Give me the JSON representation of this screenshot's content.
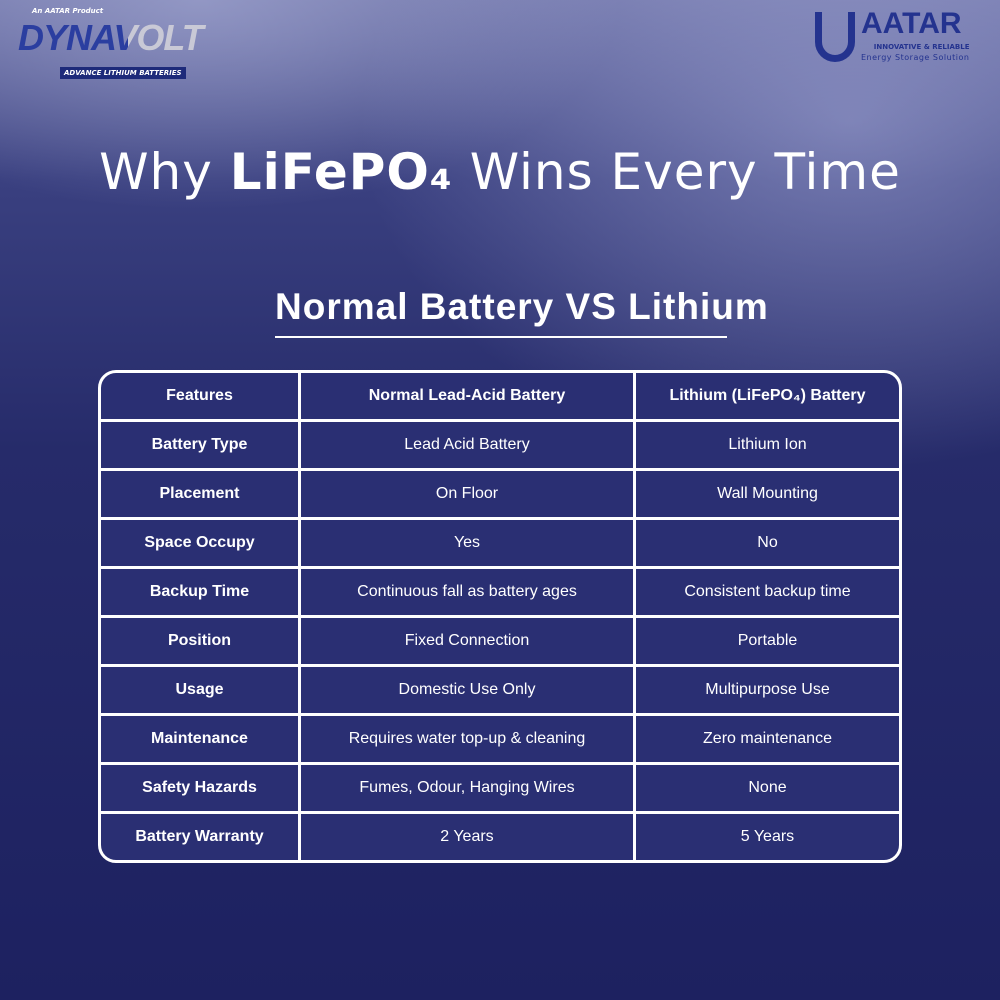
{
  "brand_left": {
    "pre": "An AATAR Product",
    "name": "DYNAVOLT",
    "tagline": "ADVANCE LITHIUM BATTERIES"
  },
  "brand_right": {
    "name": "AATAR",
    "tagline1": "INNOVATIVE & RELIABLE",
    "tagline2": "Energy Storage Solution"
  },
  "title": {
    "pre": "Why ",
    "bold": "LiFePO₄",
    "post": " Wins Every Time"
  },
  "subtitle": "Normal Battery VS Lithium",
  "table": {
    "headers": [
      "Features",
      "Normal Lead-Acid Battery",
      "Lithium (LiFePO₄) Battery"
    ],
    "rows": [
      [
        "Battery Type",
        "Lead Acid Battery",
        "Lithium Ion"
      ],
      [
        "Placement",
        "On Floor",
        "Wall Mounting"
      ],
      [
        "Space Occupy",
        "Yes",
        "No"
      ],
      [
        "Backup Time",
        "Continuous fall as battery ages",
        "Consistent backup time"
      ],
      [
        "Position",
        "Fixed Connection",
        "Portable"
      ],
      [
        "Usage",
        "Domestic Use Only",
        "Multipurpose Use"
      ],
      [
        "Maintenance",
        "Requires water top-up & cleaning",
        "Zero maintenance"
      ],
      [
        "Safety Hazards",
        "Fumes, Odour, Hanging Wires",
        "None"
      ],
      [
        "Battery Warranty",
        "2 Years",
        "5 Years"
      ]
    ]
  }
}
